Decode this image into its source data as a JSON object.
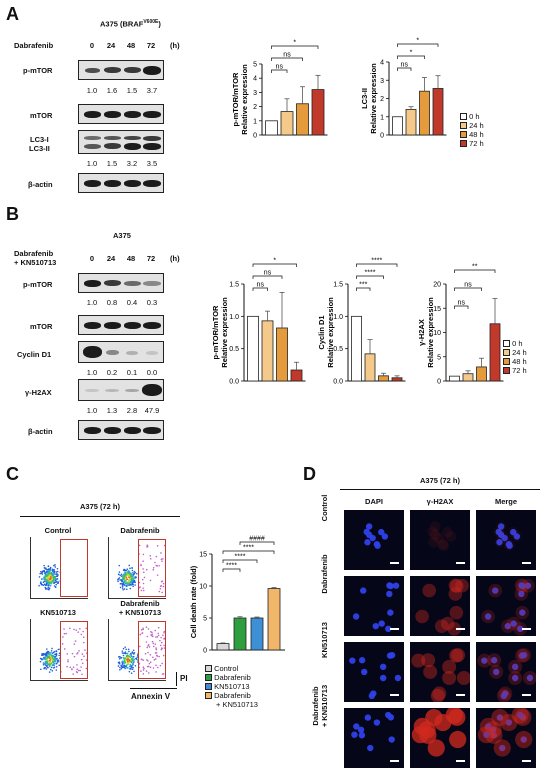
{
  "panels": {
    "A": "A",
    "B": "B",
    "C": "C",
    "D": "D"
  },
  "panelA": {
    "cell_line": "A375 (BRAF",
    "cell_line_sup": "V600E",
    "cell_line_close": ")",
    "treatment_label": "Dabrafenib",
    "timepoints": [
      "0",
      "24",
      "48",
      "72"
    ],
    "unit": "(h)",
    "blots": {
      "pmtor": "p-mTOR",
      "mtor": "mTOR",
      "lc3": [
        "LC3-I",
        "LC3-II"
      ],
      "actin": "β-actin"
    },
    "quant_pmtor": [
      "1.0",
      "1.6",
      "1.5",
      "3.7"
    ],
    "quant_lc3": [
      "1.0",
      "1.5",
      "3.2",
      "3.5"
    ]
  },
  "panelB": {
    "cell_line": "A375",
    "treatment_label": [
      "Dabrafenib",
      "+ KN510713"
    ],
    "timepoints": [
      "0",
      "24",
      "48",
      "72"
    ],
    "unit": "(h)",
    "blots": {
      "pmtor": "p-mTOR",
      "mtor": "mTOR",
      "cyclin": "Cyclin D1",
      "h2ax": "γ-H2AX",
      "actin": "β-actin"
    },
    "quant_pmtor": [
      "1.0",
      "0.8",
      "0.4",
      "0.3"
    ],
    "quant_cyclin": [
      "1.0",
      "0.2",
      "0.1",
      "0.0"
    ],
    "quant_h2ax": [
      "1.0",
      "1.3",
      "2.8",
      "47.9"
    ]
  },
  "legend_time": [
    "0 h",
    "24 h",
    "48 h",
    "72 h"
  ],
  "colors": {
    "t0": "#ffffff",
    "t24": "#f5c98a",
    "t48": "#e59a3c",
    "t72": "#c0392b",
    "control": "#d9d9d9",
    "dabrafenib": "#2e9e3e",
    "kn": "#3d8fd6",
    "combo": "#f2b66b",
    "gate": "#c0392b"
  },
  "panelC": {
    "title": "A375 (72 h)",
    "plots": [
      "Control",
      "Dabrafenib",
      "KN510713",
      [
        "Dabrafenib",
        "+ KN510713"
      ]
    ],
    "y_axis_label": "PI",
    "x_axis_label": "Annexin V",
    "legend": [
      "Control",
      "Dabrafenib",
      "KN510713",
      "Dabrafenib",
      "+ KN510713"
    ]
  },
  "panelD": {
    "title": "A375 (72 h)",
    "columns": [
      "DAPI",
      "γ-H2AX",
      "Merge"
    ],
    "rows": [
      "Control",
      "Dabrafenib",
      "KN510713",
      [
        "Dabrafenib",
        "+ KN510713"
      ]
    ]
  },
  "chart_data": [
    {
      "id": "A1",
      "type": "bar",
      "categories": [
        "0 h",
        "24 h",
        "48 h",
        "72 h"
      ],
      "values": [
        1.0,
        1.65,
        2.2,
        3.2
      ],
      "errors": [
        0,
        0.9,
        1.2,
        1.0
      ],
      "ylabel": [
        "p-mTOR/mTOR",
        "Relative expression"
      ],
      "ylim": [
        0,
        5
      ],
      "ticks": [
        0,
        1,
        2,
        3,
        4,
        5
      ],
      "significance": [
        {
          "from": 0,
          "to": 1,
          "label": "ns"
        },
        {
          "from": 0,
          "to": 2,
          "label": "ns"
        },
        {
          "from": 0,
          "to": 3,
          "label": "*"
        }
      ]
    },
    {
      "id": "A2",
      "type": "bar",
      "categories": [
        "0 h",
        "24 h",
        "48 h",
        "72 h"
      ],
      "values": [
        1.0,
        1.4,
        2.4,
        2.55
      ],
      "errors": [
        0,
        0.15,
        0.75,
        0.7
      ],
      "ylabel": [
        "LC3-II",
        "Relative expression"
      ],
      "ylim": [
        0,
        4
      ],
      "ticks": [
        0,
        1,
        2,
        3,
        4
      ],
      "significance": [
        {
          "from": 0,
          "to": 1,
          "label": "ns"
        },
        {
          "from": 0,
          "to": 2,
          "label": "*"
        },
        {
          "from": 0,
          "to": 3,
          "label": "*"
        }
      ]
    },
    {
      "id": "B1",
      "type": "bar",
      "categories": [
        "0 h",
        "24 h",
        "48 h",
        "72 h"
      ],
      "values": [
        1.0,
        0.93,
        0.82,
        0.17
      ],
      "errors": [
        0,
        0.15,
        0.55,
        0.12
      ],
      "ylabel": [
        "p-mTOR/mTOR",
        "Relative expression"
      ],
      "ylim": [
        0,
        1.5
      ],
      "ticks": [
        0.0,
        0.5,
        1.0,
        1.5
      ],
      "tick_labels": [
        "0.0",
        "0.5",
        "1.0",
        "1.5"
      ],
      "significance": [
        {
          "from": 0,
          "to": 1,
          "label": "ns"
        },
        {
          "from": 0,
          "to": 2,
          "label": "ns"
        },
        {
          "from": 0,
          "to": 3,
          "label": "*"
        }
      ]
    },
    {
      "id": "B2",
      "type": "bar",
      "categories": [
        "0 h",
        "24 h",
        "48 h",
        "72 h"
      ],
      "values": [
        1.0,
        0.42,
        0.08,
        0.05
      ],
      "errors": [
        0,
        0.22,
        0.04,
        0.03
      ],
      "ylabel": [
        "Cyclin D1",
        "Relative expression"
      ],
      "ylim": [
        0,
        1.5
      ],
      "ticks": [
        0.0,
        0.5,
        1.0,
        1.5
      ],
      "tick_labels": [
        "0.0",
        "0.5",
        "1.0",
        "1.5"
      ],
      "significance": [
        {
          "from": 0,
          "to": 1,
          "label": "***"
        },
        {
          "from": 0,
          "to": 2,
          "label": "****"
        },
        {
          "from": 0,
          "to": 3,
          "label": "****"
        }
      ]
    },
    {
      "id": "B3",
      "type": "bar",
      "categories": [
        "0 h",
        "24 h",
        "48 h",
        "72 h"
      ],
      "values": [
        1.0,
        1.5,
        2.9,
        11.8
      ],
      "errors": [
        0,
        0.6,
        1.8,
        5.2
      ],
      "ylabel": [
        "γ-H2AX",
        "Relative expression"
      ],
      "ylim": [
        0,
        20
      ],
      "ticks": [
        0,
        5,
        10,
        15,
        20
      ],
      "significance": [
        {
          "from": 0,
          "to": 1,
          "label": "ns"
        },
        {
          "from": 0,
          "to": 2,
          "label": "ns"
        },
        {
          "from": 0,
          "to": 3,
          "label": "**"
        }
      ]
    },
    {
      "id": "C1",
      "type": "bar",
      "categories": [
        "Control",
        "Dabrafenib",
        "KN510713",
        "Dabrafenib + KN510713"
      ],
      "values": [
        1.0,
        5.0,
        5.0,
        9.6
      ],
      "errors": [
        0.1,
        0.2,
        0.15,
        0.15
      ],
      "ylabel": [
        "Cell death rate (fold)"
      ],
      "ylim": [
        0,
        15
      ],
      "ticks": [
        0,
        5,
        10,
        15
      ],
      "significance": [
        {
          "from": 0,
          "to": 1,
          "label": "****"
        },
        {
          "from": 0,
          "to": 2,
          "label": "****"
        },
        {
          "from": 0,
          "to": 3,
          "label": "****"
        },
        {
          "from": 1,
          "to": 3,
          "label": "####"
        }
      ]
    }
  ]
}
